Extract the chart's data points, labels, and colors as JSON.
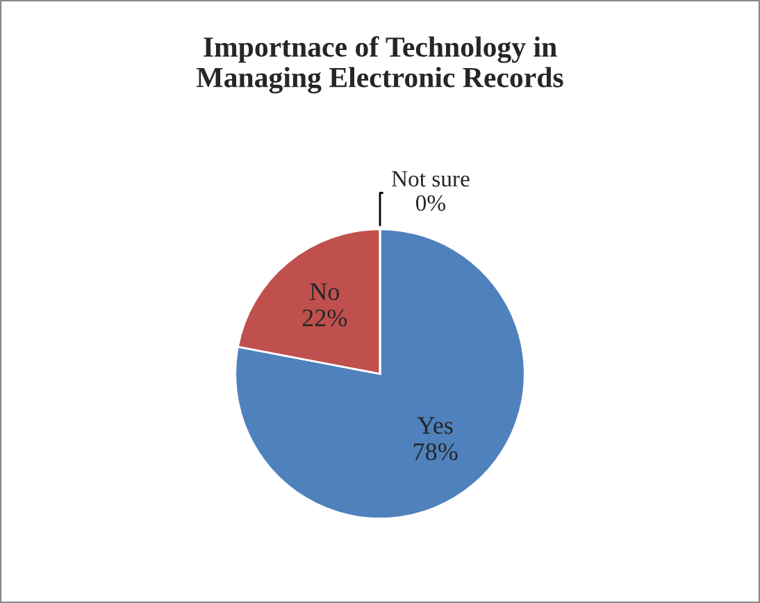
{
  "chart_data": {
    "type": "pie",
    "title": "Importnace of Technology in\nManaging Electronic Records",
    "categories": [
      "Yes",
      "No",
      "Not sure"
    ],
    "values": [
      78,
      22,
      0
    ],
    "colors": [
      "#4f81bd",
      "#c0504d",
      "#9bbb59"
    ],
    "value_labels": [
      "78%",
      "22%",
      "0%"
    ],
    "legend": false
  }
}
